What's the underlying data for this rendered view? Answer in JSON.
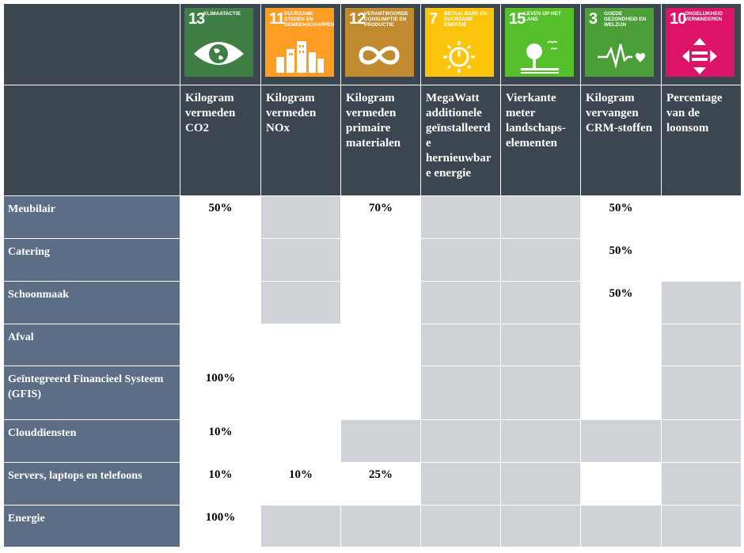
{
  "sdgs": [
    {
      "number": "13",
      "label": "KLIMAATACTIE",
      "color": "#3f7e44",
      "icon": "eye-earth-icon"
    },
    {
      "number": "11",
      "label": "DUURZAME STEDEN EN GEMEENSCHAPPEN",
      "color": "#fd9d24",
      "icon": "city-buildings-icon"
    },
    {
      "number": "12",
      "label": "VERANTWOORDE CONSUMPTIE EN PRODUCTIE",
      "color": "#bf8b2e",
      "icon": "infinity-loop-icon"
    },
    {
      "number": "7",
      "label": "BETAALBARE EN DUURZAME ENERGIE",
      "color": "#fcc30b",
      "icon": "sun-power-icon"
    },
    {
      "number": "15",
      "label": "LEVEN OP HET LAND",
      "color": "#56c02b",
      "icon": "tree-birds-icon"
    },
    {
      "number": "3",
      "label": "GOEDE GEZONDHEID EN WELZIJN",
      "color": "#4c9f38",
      "icon": "heartbeat-icon"
    },
    {
      "number": "10",
      "label": "ONGELIJKHEID VERMINDEREN",
      "color": "#dd1367",
      "icon": "equality-arrows-icon"
    }
  ],
  "headers": [
    "Kilogram vermeden CO2",
    "Kilogram vermeden NOx",
    "Kilogram vermeden primaire materialen",
    "MegaWatt additionele geïnstalleerd e hernieuwbar e energie",
    "Vierkante meter landschaps-elementen",
    "Kilogram vervangen CRM-stoffen",
    "Percentage van de loonsom"
  ],
  "rows": [
    {
      "label": "Meubilair",
      "values": [
        "50%",
        "",
        "70%",
        "",
        "",
        "50%",
        ""
      ],
      "shade": [
        "w",
        "g",
        "w",
        "g",
        "g",
        "w",
        "w"
      ]
    },
    {
      "label": "Catering",
      "values": [
        "",
        "",
        "",
        "",
        "",
        "50%",
        ""
      ],
      "shade": [
        "w",
        "g",
        "w",
        "g",
        "g",
        "w",
        "w"
      ]
    },
    {
      "label": "Schoonmaak",
      "values": [
        "",
        "",
        "",
        "",
        "",
        "50%",
        ""
      ],
      "shade": [
        "w",
        "g",
        "w",
        "g",
        "g",
        "w",
        "g"
      ]
    },
    {
      "label": "Afval",
      "values": [
        "",
        "",
        "",
        "",
        "",
        "",
        ""
      ],
      "shade": [
        "w",
        "w",
        "w",
        "g",
        "g",
        "w",
        "g"
      ]
    },
    {
      "label": "Geïntegreerd Financieel Systeem (GFIS)",
      "values": [
        "100%",
        "",
        "",
        "",
        "",
        "",
        ""
      ],
      "shade": [
        "w",
        "w",
        "w",
        "g",
        "g",
        "w",
        "g"
      ]
    },
    {
      "label": "Clouddiensten",
      "values": [
        "10%",
        "",
        "",
        "",
        "",
        "",
        ""
      ],
      "shade": [
        "w",
        "w",
        "g",
        "g",
        "g",
        "g",
        "g"
      ]
    },
    {
      "label": "Servers, laptops en telefoons",
      "values": [
        "10%",
        "10%",
        "25%",
        "",
        "",
        "",
        ""
      ],
      "shade": [
        "w",
        "w",
        "w",
        "g",
        "g",
        "w",
        "g"
      ]
    },
    {
      "label": "Energie",
      "values": [
        "100%",
        "",
        "",
        "",
        "",
        "",
        ""
      ],
      "shade": [
        "w",
        "g",
        "g",
        "g",
        "g",
        "g",
        "g"
      ]
    }
  ]
}
